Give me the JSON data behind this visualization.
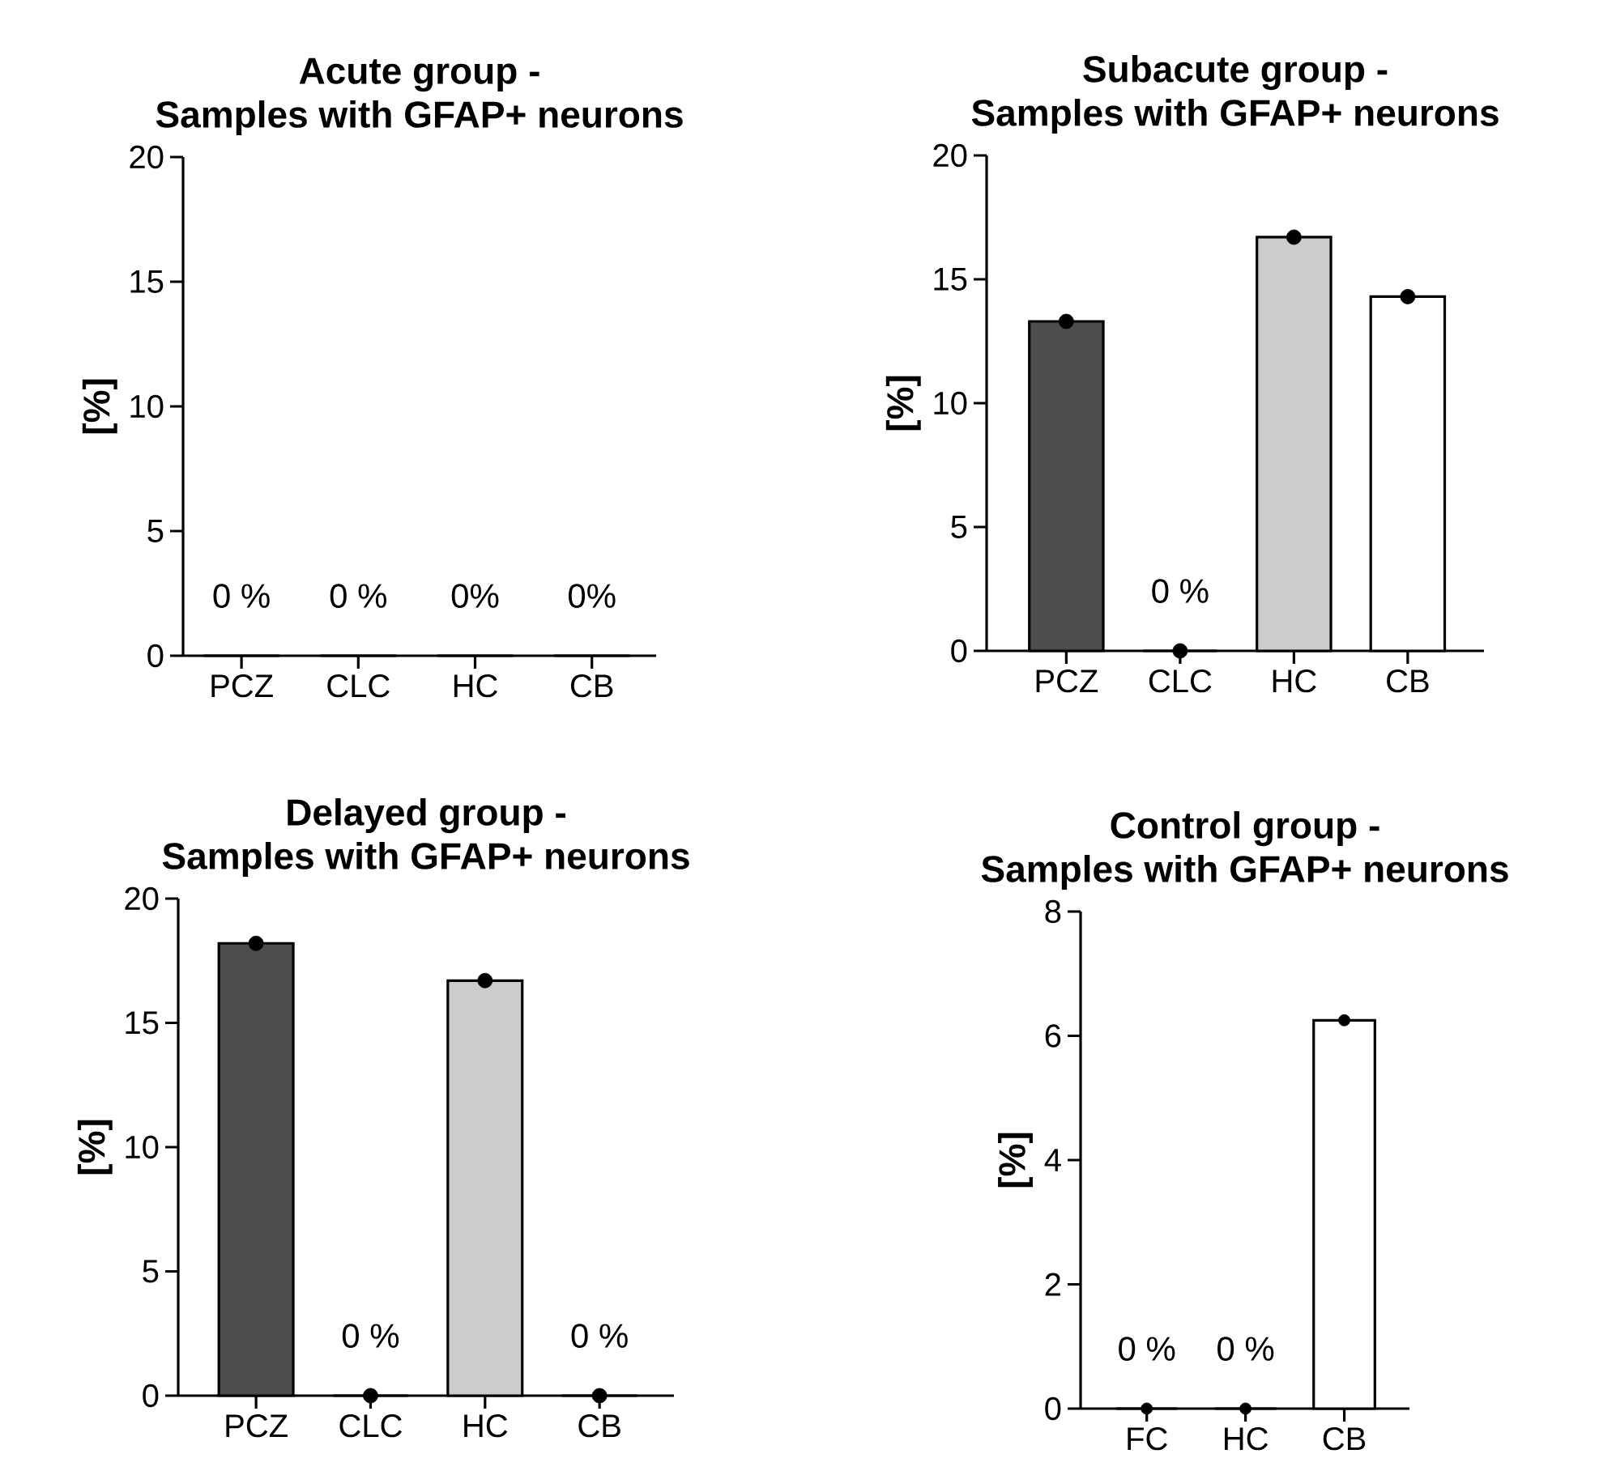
{
  "chart_data": [
    {
      "type": "bar",
      "title": "Acute group -",
      "subtitle": "Samples with GFAP+ neurons",
      "ylabel": "[%]",
      "categories": [
        "PCZ",
        "CLC",
        "HC",
        "CB"
      ],
      "ylim": [
        0,
        20
      ],
      "yticks": [
        0,
        5,
        10,
        15,
        20
      ],
      "series": [
        {
          "values": [
            0,
            0,
            0,
            0
          ],
          "colors": [
            "#4d4d4d",
            "#ffffff",
            "#cccccc",
            "#ffffff"
          ]
        }
      ],
      "annotations": [
        "0 %",
        "0 %",
        "0%",
        "0%"
      ]
    },
    {
      "type": "bar",
      "title": "Subacute group -",
      "subtitle": "Samples with GFAP+ neurons",
      "ylabel": "[%]",
      "categories": [
        "PCZ",
        "CLC",
        "HC",
        "CB"
      ],
      "ylim": [
        0,
        20
      ],
      "yticks": [
        0,
        5,
        10,
        15,
        20
      ],
      "series": [
        {
          "values": [
            13.3,
            0,
            16.7,
            14.3
          ],
          "colors": [
            "#4d4d4d",
            "#ffffff",
            "#cccccc",
            "#ffffff"
          ]
        },
        {
          "type": "scatter",
          "x": [
            "PCZ",
            "CLC",
            "HC",
            "CB"
          ],
          "values": [
            13.3,
            0,
            16.7,
            14.3
          ],
          "color": "#000000",
          "marker": "circle"
        }
      ],
      "annotations": [
        "0 %"
      ]
    },
    {
      "type": "bar",
      "title": "Delayed group -",
      "subtitle": "Samples with GFAP+ neurons",
      "ylabel": "[%]",
      "categories": [
        "PCZ",
        "CLC",
        "HC",
        "CB"
      ],
      "ylim": [
        0,
        20
      ],
      "yticks": [
        0,
        5,
        10,
        15,
        20
      ],
      "series": [
        {
          "values": [
            18.2,
            0,
            16.7,
            0
          ],
          "colors": [
            "#4d4d4d",
            "#ffffff",
            "#cccccc",
            "#ffffff"
          ]
        },
        {
          "type": "scatter",
          "x": [
            "PCZ",
            "CLC",
            "HC",
            "CB"
          ],
          "values": [
            18.2,
            0,
            16.7,
            0
          ],
          "color": "#000000",
          "marker": "circle"
        }
      ],
      "annotations": [
        "0 %",
        "0 %"
      ]
    },
    {
      "type": "bar",
      "title": "Control group -",
      "subtitle": "Samples with GFAP+ neurons",
      "ylabel": "[%]",
      "categories": [
        "FC",
        "HC",
        "CB"
      ],
      "ylim": [
        0,
        8
      ],
      "yticks": [
        0,
        2,
        4,
        6,
        8
      ],
      "series": [
        {
          "values": [
            0,
            0,
            6.25
          ],
          "colors": [
            "#ffffff",
            "#ffffff",
            "#ffffff"
          ]
        },
        {
          "type": "scatter",
          "x": [
            "FC",
            "HC",
            "CB"
          ],
          "values": [
            0,
            0,
            6.25
          ],
          "color": "#000000",
          "marker": "circle"
        }
      ],
      "annotations": [
        "0 %",
        "0 %"
      ]
    }
  ]
}
